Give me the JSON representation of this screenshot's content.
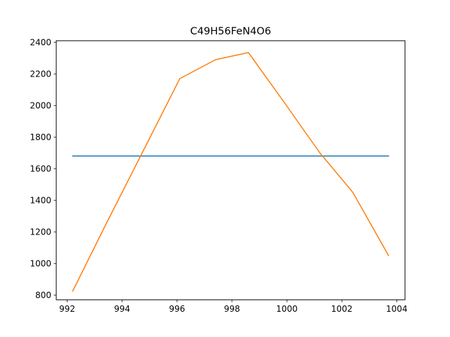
{
  "chart_data": {
    "type": "line",
    "title": "C49H56FeN4O6",
    "xlabel": "",
    "ylabel": "",
    "xlim": [
      991.6,
      1004.3
    ],
    "ylim": [
      770,
      2410
    ],
    "xticks": [
      992,
      994,
      996,
      998,
      1000,
      1002,
      1004
    ],
    "yticks": [
      800,
      1000,
      1200,
      1400,
      1600,
      1800,
      2000,
      2200,
      2400
    ],
    "grid": false,
    "series": [
      {
        "color": "#1f77b4",
        "x": [
          992.2,
          993.4,
          994.7,
          996.1,
          997.4,
          998.6,
          999.9,
          1001.2,
          1002.4,
          1003.7
        ],
        "y": [
          1680,
          1680,
          1680,
          1680,
          1680,
          1680,
          1680,
          1680,
          1680,
          1680
        ]
      },
      {
        "color": "#ff7f0e",
        "x": [
          992.2,
          993.4,
          994.7,
          996.1,
          997.4,
          998.6,
          999.9,
          1001.2,
          1002.4,
          1003.7
        ],
        "y": [
          825,
          1245,
          1690,
          2170,
          2290,
          2335,
          2020,
          1700,
          1450,
          1050
        ]
      }
    ]
  }
}
